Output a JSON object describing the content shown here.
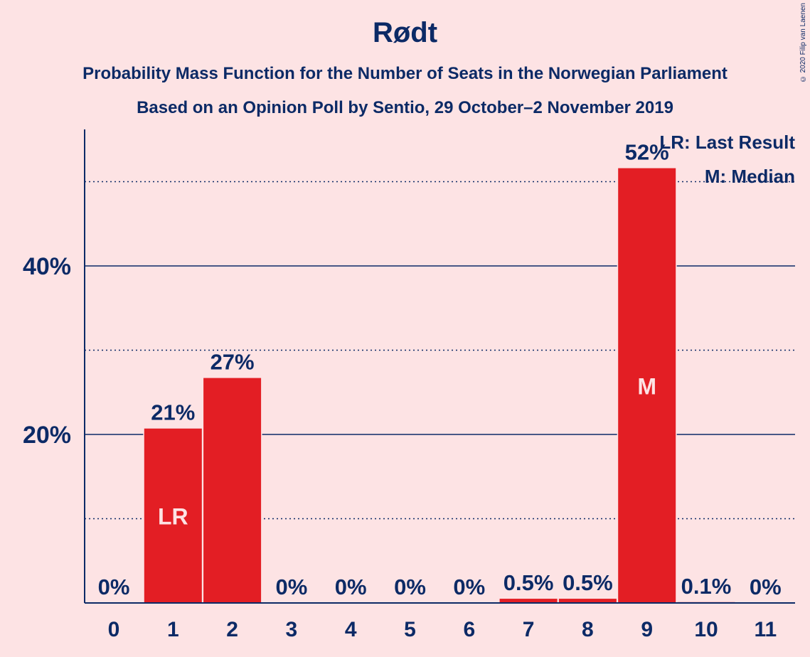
{
  "chart_data": {
    "type": "bar",
    "title": "Rødt",
    "subtitle": [
      "Probability Mass Function for the Number of Seats in the Norwegian Parliament",
      "Based on an Opinion Poll by Sentio, 29 October–2 November 2019"
    ],
    "categories": [
      "0",
      "1",
      "2",
      "3",
      "4",
      "5",
      "6",
      "7",
      "8",
      "9",
      "10",
      "11"
    ],
    "values": [
      0,
      20.7,
      26.7,
      0,
      0,
      0,
      0,
      0.5,
      0.5,
      51.6,
      0.1,
      0
    ],
    "value_labels": [
      "0%",
      "21%",
      "27%",
      "0%",
      "0%",
      "0%",
      "0%",
      "0.5%",
      "0.5%",
      "52%",
      "0.1%",
      "0%"
    ],
    "bar_markers": {
      "1": "LR",
      "9": "M"
    },
    "yticks": [
      {
        "value": 20,
        "label": "20%"
      },
      {
        "value": 40,
        "label": "40%"
      }
    ],
    "minor_gridlines": [
      10,
      30,
      50
    ],
    "ylim": [
      0,
      56
    ],
    "legend": {
      "position": "top-right",
      "entries": [
        "LR: Last Result",
        "M: Median"
      ]
    },
    "colors": {
      "bar": "#e31e24",
      "text": "#0c2a66",
      "background": "#fde3e4",
      "marker_text": "#fde3e4"
    }
  },
  "copyright": "© 2020 Filip van Laenen"
}
